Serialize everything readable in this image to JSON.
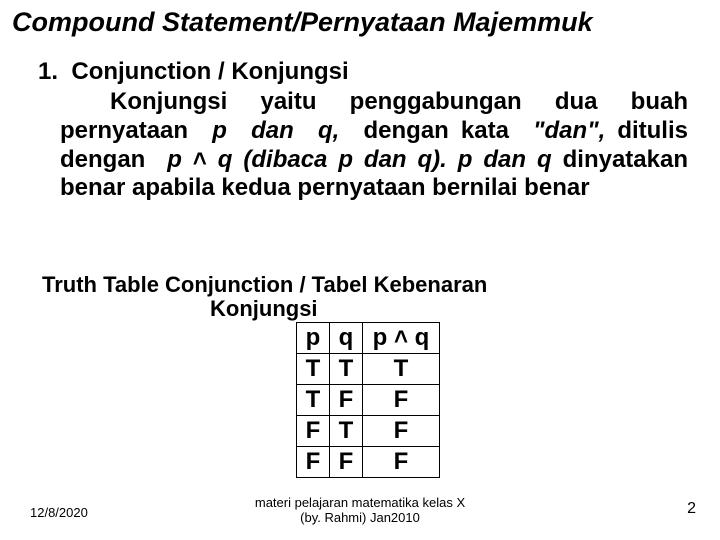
{
  "title": "Compound Statement/Pernyataan Majemmuk",
  "section_number": "1.",
  "section_heading": "Conjunction / Konjungsi",
  "body_lead": "Konjungsi yaitu penggabungan dua buah",
  "body_line2a": "pernyataan",
  "body_line2b": "p",
  "body_line2c": "dan",
  "body_line2d": "q,",
  "body_line2e": "dengan kata",
  "body_line2f": "\"dan\",",
  "body_line3a": "ditulis dengan",
  "body_line3b_p": "p",
  "body_wedge": "˄",
  "body_line3b_q": "q (dibaca p dan q).",
  "body_line3c_p": "p",
  "body_line3d": "dan",
  "body_line4a_q": "q",
  "body_line4b": "dinyatakan benar apabila kedua pernyataan",
  "body_line5": "bernilai benar",
  "subheading": "Truth Table Conjunction / Tabel Kebenaran",
  "subheading2": "Konjungsi",
  "table": {
    "h1": "p",
    "h2": "q",
    "h3a": "p",
    "h3w": "˄",
    "h3b": "q",
    "rows": [
      [
        "T",
        "T",
        "T"
      ],
      [
        "T",
        "F",
        "F"
      ],
      [
        "F",
        "T",
        "F"
      ],
      [
        "F",
        "F",
        "F"
      ]
    ]
  },
  "date": "12/8/2020",
  "footer_line1": "materi pelajaran matematika kelas X",
  "footer_line2": "(by. Rahmi) Jan2010",
  "pagenum": "2",
  "colors": {
    "text": "#000000",
    "background": "#ffffff",
    "border": "#000000"
  }
}
